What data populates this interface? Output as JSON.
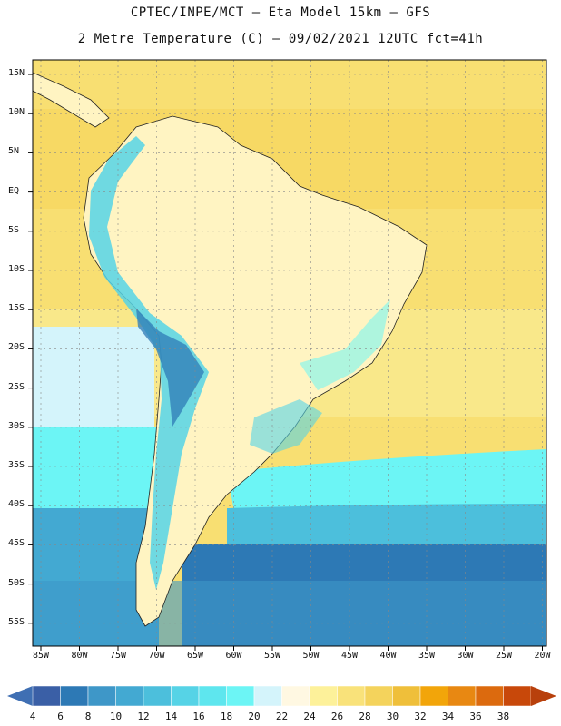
{
  "title": {
    "line1": "CPTEC/INPE/MCT –  Eta Model 15km – GFS",
    "line2": "2 Metre Temperature (C) – 09/02/2021 12UTC fct=41h"
  },
  "map": {
    "lat_labels": [
      "15N",
      "10N",
      "5N",
      "EQ",
      "5S",
      "10S",
      "15S",
      "20S",
      "25S",
      "30S",
      "35S",
      "40S",
      "45S",
      "50S",
      "55S"
    ],
    "lon_labels": [
      "85W",
      "80W",
      "75W",
      "70W",
      "65W",
      "60W",
      "55W",
      "50W",
      "45W",
      "40W",
      "35W",
      "30W",
      "25W",
      "20W"
    ]
  },
  "colorbar": {
    "values": [
      "4",
      "6",
      "8",
      "10",
      "12",
      "14",
      "16",
      "18",
      "20",
      "22",
      "24",
      "26",
      "28",
      "30",
      "32",
      "34",
      "36",
      "38"
    ],
    "colors": [
      "#3a5fa6",
      "#2d79b5",
      "#3e97c8",
      "#43a9d2",
      "#4cbfdc",
      "#56d3e6",
      "#5ee6ee",
      "#6cf5f5",
      "#d4f4fb",
      "#fff8e2",
      "#fdf19a",
      "#f9e27a",
      "#f4d35c",
      "#efbf3a",
      "#f2a50a",
      "#e88812",
      "#dc6a0e",
      "#c8480a"
    ],
    "left_color": "#3f6fb3",
    "right_color": "#b8400c"
  },
  "colors": {
    "ocean_warm": "#f8df72",
    "ocean_cool": "#6cf5f5",
    "ocean_cold": "#2f70b0",
    "land": "#fff4c2"
  }
}
